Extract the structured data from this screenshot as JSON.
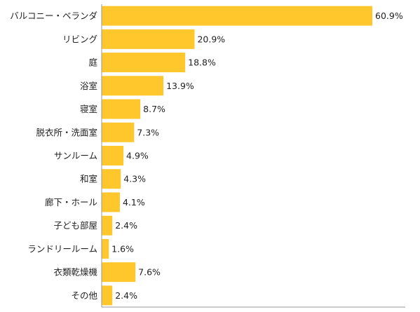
{
  "chart_data": {
    "type": "bar",
    "orientation": "horizontal",
    "categories": [
      "バルコニー・ベランダ",
      "リビング",
      "庭",
      "浴室",
      "寝室",
      "脱衣所・洗面室",
      "サンルーム",
      "和室",
      "廊下・ホール",
      "子ども部屋",
      "ランドリールーム",
      "衣類乾燥機",
      "その他"
    ],
    "values": [
      60.9,
      20.9,
      18.8,
      13.9,
      8.7,
      7.3,
      4.9,
      4.3,
      4.1,
      2.4,
      1.6,
      7.6,
      2.4
    ],
    "value_labels": [
      "60.9%",
      "20.9%",
      "18.8%",
      "13.9%",
      "8.7%",
      "7.3%",
      "4.9%",
      "4.3%",
      "4.1%",
      "2.4%",
      "1.6%",
      "7.6%",
      "2.4%"
    ],
    "title": "",
    "xlabel": "",
    "ylabel": "",
    "xlim": [
      0,
      70
    ],
    "grid": false,
    "legend": "none",
    "colors": {
      "bar": "#FFC72C",
      "axis": "#999999",
      "text": "#222222"
    }
  }
}
